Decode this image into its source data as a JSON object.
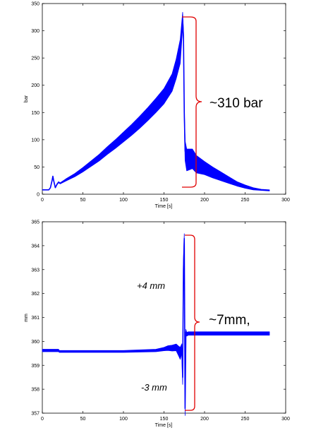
{
  "chart_data": [
    {
      "type": "line",
      "xlabel": "Time [s]",
      "ylabel": "bar",
      "xlim": [
        0,
        300
      ],
      "ylim": [
        0,
        350
      ],
      "xticks": [
        0,
        50,
        100,
        150,
        200,
        250,
        300
      ],
      "yticks": [
        0,
        50,
        100,
        150,
        200,
        250,
        300,
        350
      ],
      "grid": false,
      "series_color": "#0000ff",
      "series": [
        {
          "x": [
            0,
            8,
            10,
            12,
            13,
            14,
            16,
            18,
            20,
            22,
            30,
            40,
            50,
            60,
            70,
            80,
            90,
            100,
            110,
            120,
            130,
            140,
            150,
            160,
            165,
            170,
            173,
            174,
            175,
            176,
            178,
            185,
            190,
            200,
            210,
            220,
            230,
            240,
            250,
            260,
            270,
            280
          ],
          "y": [
            8,
            8,
            12,
            25,
            33,
            25,
            12,
            18,
            22,
            20,
            27,
            35,
            45,
            56,
            67,
            80,
            92,
            105,
            118,
            132,
            147,
            163,
            180,
            205,
            230,
            262,
            320,
            290,
            150,
            80,
            63,
            65,
            55,
            48,
            40,
            33,
            26,
            19,
            14,
            10,
            8,
            7
          ],
          "band": [
            0,
            0,
            0,
            0,
            0,
            0,
            0,
            1,
            1,
            1,
            2,
            3,
            4,
            5,
            6,
            7,
            8,
            9,
            10,
            11,
            12,
            13,
            14,
            16,
            18,
            22,
            14,
            10,
            10,
            18,
            20,
            18,
            16,
            12,
            10,
            8,
            6,
            4,
            3,
            2,
            1,
            1
          ]
        }
      ],
      "annotation": {
        "text": "~310 bar",
        "bracket_from": 10,
        "bracket_to": 325
      }
    },
    {
      "type": "line",
      "xlabel": "Time [s]",
      "ylabel": "mm",
      "xlim": [
        0,
        300
      ],
      "ylim": [
        357,
        365
      ],
      "xticks": [
        0,
        50,
        100,
        150,
        200,
        250,
        300
      ],
      "yticks": [
        357,
        358,
        359,
        360,
        361,
        362,
        363,
        364,
        365
      ],
      "grid": false,
      "series_color": "#0000ff",
      "series": [
        {
          "x": [
            0,
            20,
            21,
            60,
            100,
            140,
            150,
            155,
            160,
            165,
            168,
            170,
            172,
            173,
            174,
            175,
            176,
            177,
            178,
            180,
            200,
            250,
            280
          ],
          "y": [
            359.62,
            359.62,
            359.58,
            359.58,
            359.58,
            359.62,
            359.68,
            359.72,
            359.72,
            359.75,
            359.6,
            359.5,
            359.7,
            358.5,
            363.0,
            364.3,
            357.2,
            360.4,
            360.3,
            360.33,
            360.33,
            360.33,
            360.33
          ],
          "band": [
            0.05,
            0.05,
            0.04,
            0.04,
            0.04,
            0.05,
            0.07,
            0.1,
            0.12,
            0.14,
            0.2,
            0.25,
            0.2,
            0.3,
            0.4,
            0.2,
            0.3,
            0.1,
            0.08,
            0.07,
            0.07,
            0.07,
            0.07
          ]
        }
      ],
      "annotations": [
        {
          "text": "+4 mm"
        },
        {
          "text": "-3 mm"
        },
        {
          "text": "~7mm,"
        }
      ],
      "bracket_from": 357.1,
      "bracket_to": 364.4
    }
  ]
}
